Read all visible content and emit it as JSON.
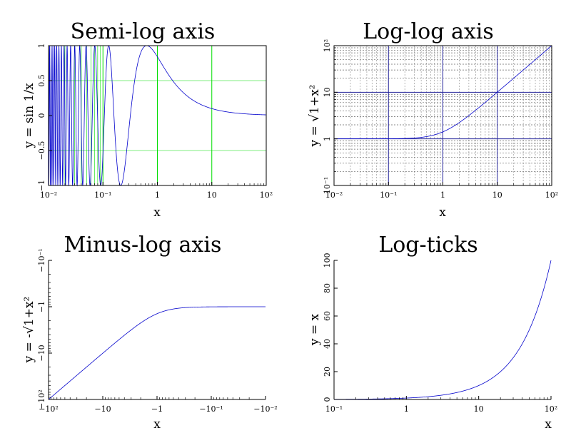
{
  "chart_data": [
    {
      "id": "semilog",
      "type": "line",
      "title": "Semi-log axis",
      "xlabel": "x",
      "ylabel": "y = sin 1/x",
      "xscale": "log",
      "yscale": "linear",
      "xlim": [
        0.01,
        100
      ],
      "ylim": [
        -1,
        1
      ],
      "xticks": [
        0.01,
        0.1,
        1,
        10,
        100
      ],
      "xticklabels": [
        "10⁻²",
        "10⁻¹",
        "1",
        "10",
        "10²"
      ],
      "yticks": [
        -1,
        -0.5,
        0,
        0.5,
        1
      ],
      "yticklabels": [
        "−1",
        "−0.5",
        "0",
        "0.5",
        "1"
      ],
      "grid": true,
      "grid_color": "#00dd00",
      "line_color": "#0000cc",
      "x": [
        0.01,
        0.02,
        0.05,
        0.1,
        0.16,
        0.2,
        0.3,
        0.5,
        0.637,
        1,
        2,
        5,
        10,
        30,
        100
      ],
      "y": [
        -0.506,
        -0.262,
        0.913,
        -0.544,
        0.0,
        -0.959,
        -0.191,
        0.909,
        1.0,
        0.841,
        0.479,
        0.199,
        0.1,
        0.033,
        0.01
      ]
    },
    {
      "id": "loglog",
      "type": "line",
      "title": "Log-log axis",
      "xlabel": "x",
      "ylabel": "y = √1+x²",
      "xscale": "log",
      "yscale": "log",
      "xlim": [
        0.01,
        100
      ],
      "ylim": [
        0.1,
        100
      ],
      "xticks": [
        0.01,
        0.1,
        1,
        10,
        100
      ],
      "xticklabels": [
        "10⁻²",
        "10⁻¹",
        "1",
        "10",
        "10²"
      ],
      "yticks": [
        0.1,
        1,
        10,
        100
      ],
      "yticklabels": [
        "10⁻¹",
        "1",
        "10",
        "10²"
      ],
      "grid": true,
      "line_color": "#0000cc",
      "x": [
        0.01,
        0.1,
        0.3,
        1,
        3,
        10,
        30,
        100
      ],
      "y": [
        1.0,
        1.005,
        1.044,
        1.414,
        3.162,
        10.05,
        30.02,
        100.0
      ]
    },
    {
      "id": "minuslog",
      "type": "line",
      "title": "Minus-log axis",
      "xlabel": "x",
      "ylabel": "y = -√1+x²",
      "xscale": "log",
      "yscale": "log",
      "xlim": [
        -100,
        -0.01
      ],
      "ylim": [
        -100,
        -0.1
      ],
      "xticks": [
        -100,
        -10,
        -1,
        -0.1,
        -0.01
      ],
      "xticklabels": [
        "−10²",
        "−10",
        "−1",
        "−10⁻¹",
        "−10⁻²"
      ],
      "yticks": [
        -100,
        -10,
        -1,
        -0.1
      ],
      "yticklabels": [
        "−10²",
        "−10",
        "−1",
        "−10⁻¹"
      ],
      "grid": false,
      "line_color": "#0000cc",
      "x": [
        -100,
        -30,
        -10,
        -3,
        -1,
        -0.3,
        -0.1,
        -0.01
      ],
      "y": [
        -100.0,
        -30.02,
        -10.05,
        -3.162,
        -1.414,
        -1.044,
        -1.005,
        -1.0
      ]
    },
    {
      "id": "logticks",
      "type": "line",
      "title": "Log-ticks",
      "xlabel": "x",
      "ylabel": "y = x",
      "xscale": "log",
      "yscale": "linear",
      "xlim": [
        0.1,
        100
      ],
      "ylim": [
        0,
        100
      ],
      "xticks": [
        0.1,
        1,
        10,
        100
      ],
      "xticklabels": [
        "10⁻¹",
        "1",
        "10",
        "10²"
      ],
      "yticks": [
        0,
        20,
        40,
        60,
        80,
        100
      ],
      "yticklabels": [
        "0",
        "20",
        "40",
        "60",
        "80",
        "100"
      ],
      "grid": false,
      "line_color": "#0000cc",
      "x": [
        0.1,
        1,
        2,
        5,
        10,
        20,
        30,
        50,
        70,
        100
      ],
      "y": [
        0.1,
        1,
        2,
        5,
        10,
        20,
        30,
        50,
        70,
        100
      ]
    }
  ]
}
